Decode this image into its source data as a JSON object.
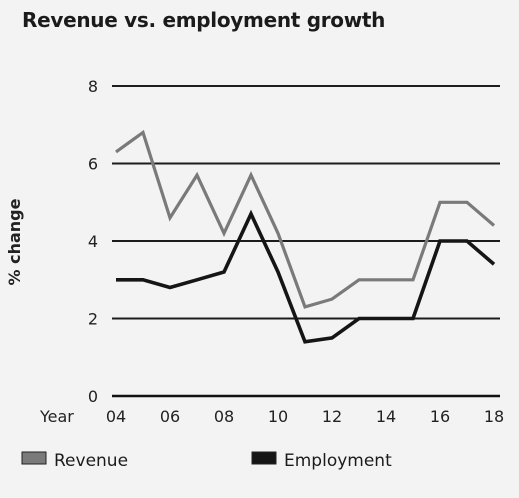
{
  "chart_data": {
    "type": "line",
    "title": "Revenue vs. employment growth",
    "ylabel": "% change",
    "xlabel": "Year",
    "x": [
      4,
      5,
      6,
      7,
      8,
      9,
      10,
      11,
      12,
      13,
      14,
      15,
      16,
      17,
      18
    ],
    "xticks": [
      4,
      6,
      8,
      10,
      12,
      14,
      16,
      18
    ],
    "xtick_labels": [
      "04",
      "06",
      "08",
      "10",
      "12",
      "14",
      "16",
      "18"
    ],
    "xlim": [
      4,
      18
    ],
    "ylim": [
      0,
      8
    ],
    "yticks": [
      0,
      2,
      4,
      6,
      8
    ],
    "ytick_labels": [
      "0",
      "2",
      "4",
      "6",
      "8"
    ],
    "grid": "horizontal",
    "legend_position": "bottom",
    "series": [
      {
        "name": "Revenue",
        "color": "#7a7a7a",
        "values": [
          6.3,
          6.8,
          4.6,
          5.7,
          4.2,
          5.7,
          4.2,
          2.3,
          2.5,
          3.0,
          3.0,
          3.0,
          5.0,
          5.0,
          4.4
        ]
      },
      {
        "name": "Employment",
        "color": "#151515",
        "values": [
          3.0,
          3.0,
          2.8,
          3.0,
          3.2,
          4.7,
          3.2,
          1.4,
          1.5,
          2.0,
          2.0,
          2.0,
          4.0,
          4.0,
          3.4
        ]
      }
    ]
  }
}
